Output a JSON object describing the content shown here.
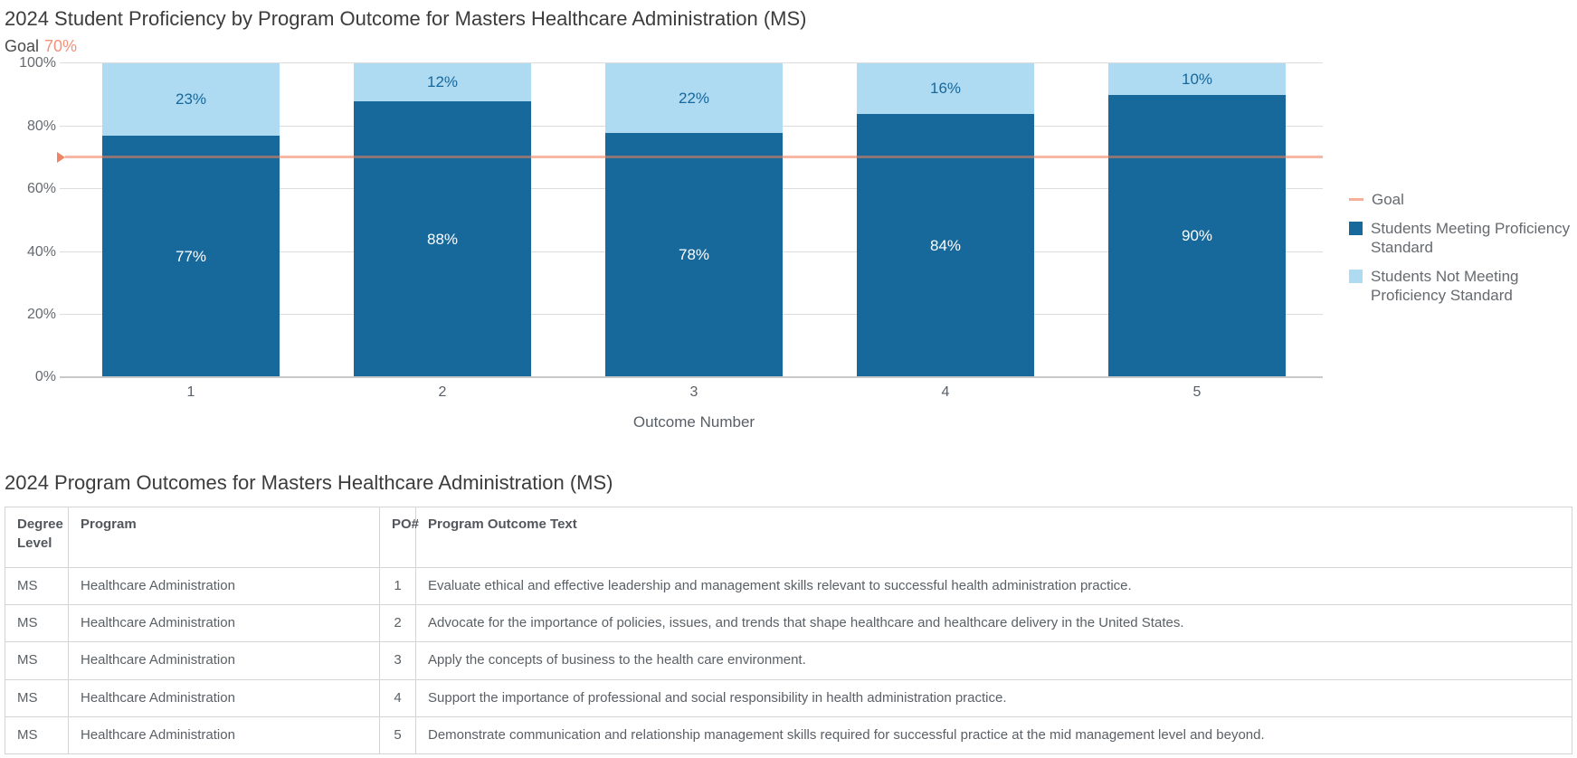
{
  "page": {
    "chart_title": "2024 Student Proficiency by Program Outcome for Masters Healthcare Administration (MS)",
    "goal_label": "Goal",
    "goal_value": "70%"
  },
  "chart_data": {
    "type": "bar",
    "stacked": true,
    "title": "2024 Student Proficiency by Program Outcome for Masters Healthcare Administration (MS)",
    "categories": [
      "1",
      "2",
      "3",
      "4",
      "5"
    ],
    "series": [
      {
        "name": "Students Meeting Proficiency Standard",
        "color": "#17689B",
        "values": [
          77,
          88,
          78,
          84,
          90
        ]
      },
      {
        "name": "Students Not Meeting Proficiency Standard",
        "color": "#AEDAF2",
        "values": [
          23,
          12,
          22,
          16,
          10
        ]
      }
    ],
    "goal_line": {
      "label": "Goal",
      "value": 70,
      "color": "#F4A287"
    },
    "xlabel": "Outcome Number",
    "ylabel": "",
    "ylim": [
      0,
      100
    ],
    "yticks": [
      "0%",
      "20%",
      "40%",
      "60%",
      "80%",
      "100%"
    ],
    "grid": true,
    "legend_position": "right"
  },
  "table_section": {
    "title": "2024 Program Outcomes for Masters Healthcare Administration (MS)",
    "columns": [
      "Degree Level",
      "Program",
      "PO#",
      "Program Outcome Text"
    ],
    "rows": [
      [
        "MS",
        "Healthcare Administration",
        "1",
        "Evaluate ethical and effective leadership and management skills relevant to successful health administration practice."
      ],
      [
        "MS",
        "Healthcare Administration",
        "2",
        "Advocate for the importance of policies, issues, and trends that shape healthcare and healthcare delivery in the United States."
      ],
      [
        "MS",
        "Healthcare Administration",
        "3",
        "Apply the concepts of business to the health care environment."
      ],
      [
        "MS",
        "Healthcare Administration",
        "4",
        "Support the importance of professional and social responsibility in health administration practice."
      ],
      [
        "MS",
        "Healthcare Administration",
        "5",
        "Demonstrate communication and relationship management skills required for successful practice at the mid management level and beyond."
      ]
    ]
  },
  "colors": {
    "meeting": "#17689B",
    "not_meeting": "#AEDAF2",
    "goal": "#F4A287",
    "title_text": "#3C3C3C",
    "axis_text": "#595F66"
  }
}
